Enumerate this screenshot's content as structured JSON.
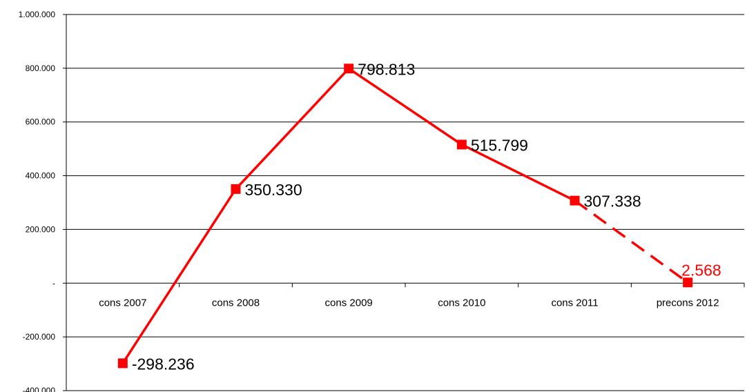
{
  "chart_data": {
    "type": "line",
    "title": "",
    "xlabel": "",
    "ylabel": "",
    "categories": [
      "cons 2007",
      "cons 2008",
      "cons 2009",
      "cons 2010",
      "cons 2011",
      "precons 2012"
    ],
    "values": [
      -298236,
      350330,
      798813,
      515799,
      307338,
      2568
    ],
    "data_labels": [
      "-298.236",
      "350.330",
      "798.813",
      "515.799",
      "307.338",
      "2.568"
    ],
    "ylim": [
      -400000,
      1000000
    ],
    "yticks": [
      {
        "value": 1000000,
        "label": "1.000.000"
      },
      {
        "value": 800000,
        "label": "800.000"
      },
      {
        "value": 600000,
        "label": "600.000"
      },
      {
        "value": 400000,
        "label": "400.000"
      },
      {
        "value": 200000,
        "label": "200.000"
      },
      {
        "value": 0,
        "label": "-"
      },
      {
        "value": -200000,
        "label": "-200.000"
      },
      {
        "value": -400000,
        "label": "-400.000"
      }
    ],
    "grid": true,
    "legend": "none",
    "line_color": "#ff0000",
    "forecast_from_index": 4,
    "highlight_label_index": 5,
    "highlight_label_color": "#ff0000",
    "label_color": "#000000"
  }
}
